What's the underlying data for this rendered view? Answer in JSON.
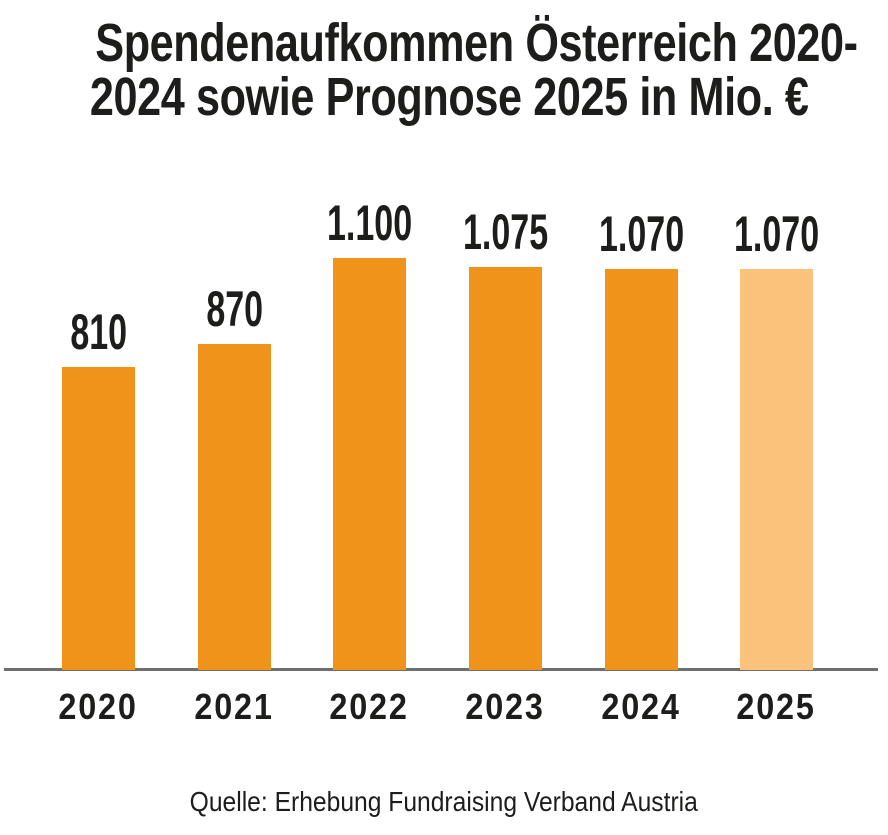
{
  "title": {
    "line1": "Spendenaufkommen Österreich 2020-",
    "line2": "2024 sowie Prognose 2025 in Mio. €"
  },
  "source": "Quelle: Erhebung Fundraising Verband Austria",
  "chart_data": {
    "type": "bar",
    "title": "Spendenaufkommen Österreich 2020-2024 sowie Prognose 2025 in Mio. €",
    "categories": [
      "2020",
      "2021",
      "2022",
      "2023",
      "2024",
      "2025"
    ],
    "values": [
      810,
      870,
      1100,
      1075,
      1070,
      1070
    ],
    "value_labels": [
      "810",
      "870",
      "1.100",
      "1.075",
      "1.070",
      "1.070"
    ],
    "xlabel": "",
    "ylabel": "",
    "ylim": [
      0,
      1200
    ],
    "grid": false,
    "legend": false,
    "forecast_category": "2025",
    "bar_color": "#F0931A",
    "forecast_bar_color": "#FBC27C",
    "text_color": "#1D1D1B",
    "axis_line_color": "#6E6E70",
    "unit": "Mio. €"
  }
}
